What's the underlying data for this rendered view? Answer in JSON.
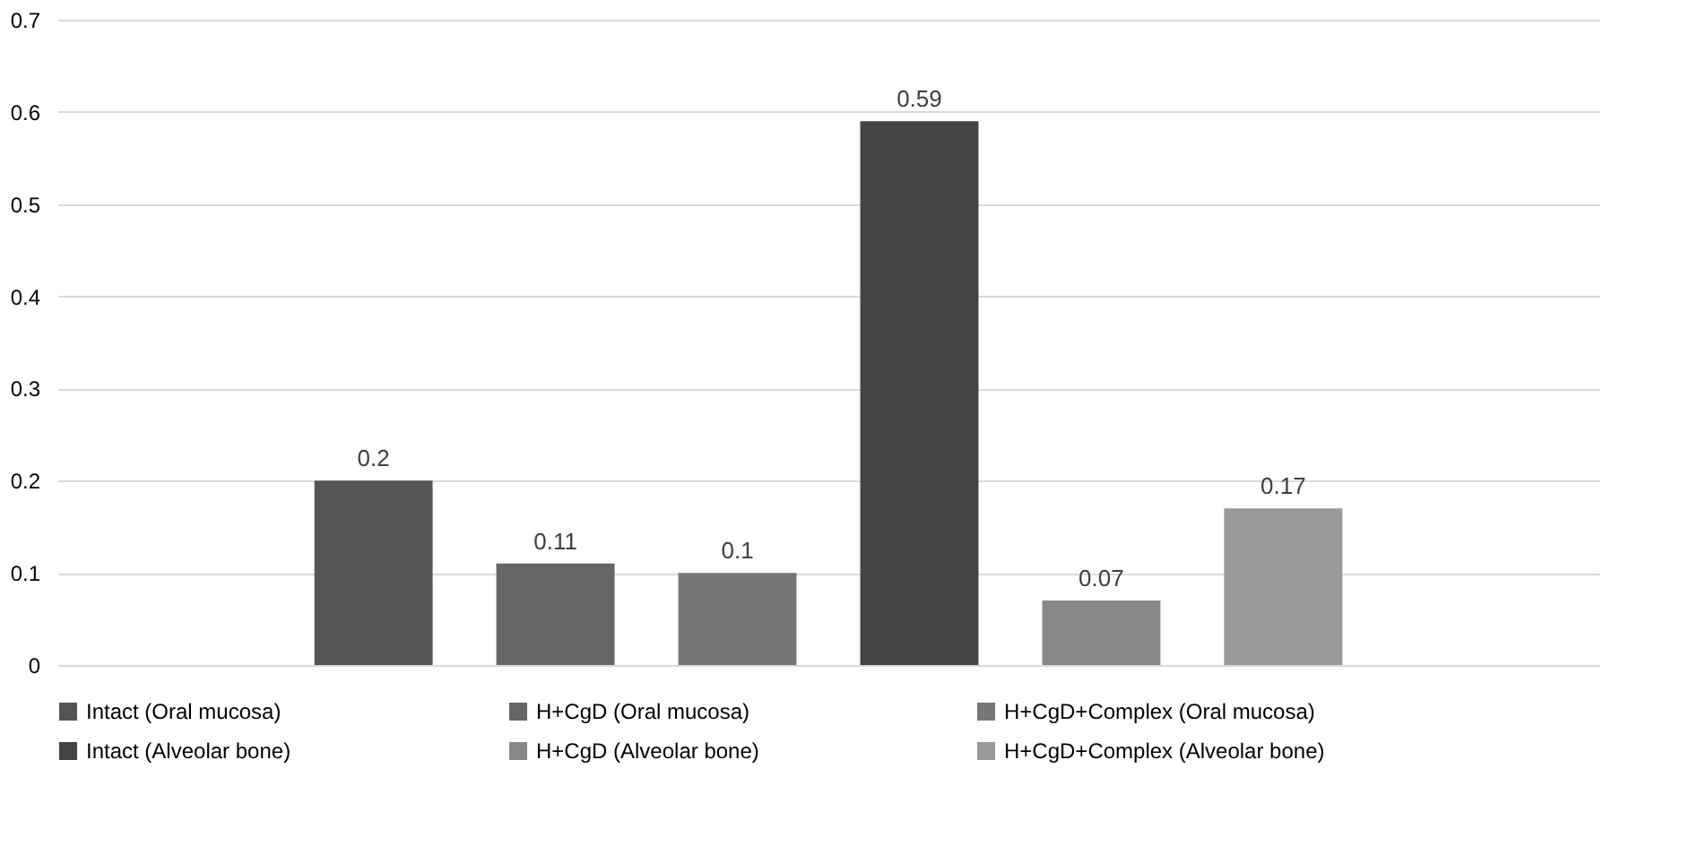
{
  "chart_data": {
    "type": "bar",
    "categories": [
      null
    ],
    "series": [
      {
        "name": "Intact (Oral mucosa)",
        "color": "#555555",
        "values": [
          0.2
        ]
      },
      {
        "name": "H+CgD (Oral mucosa)",
        "color": "#666666",
        "values": [
          0.11
        ]
      },
      {
        "name": "H+CgD+Complex  (Oral mucosa)",
        "color": "#777777",
        "values": [
          0.1
        ]
      },
      {
        "name": "Intact (Alveolar bone)",
        "color": "#444444",
        "values": [
          0.59
        ]
      },
      {
        "name": "H+CgD (Alveolar bone)",
        "color": "#888888",
        "values": [
          0.07
        ]
      },
      {
        "name": "H+CgD+Complex  (Alveolar bone)",
        "color": "#999999",
        "values": [
          0.17
        ]
      }
    ],
    "ylim": [
      0,
      0.7
    ],
    "yticks": [
      0,
      0.1,
      0.2,
      0.3,
      0.4,
      0.5,
      0.6,
      0.7
    ],
    "grid": "y",
    "legend": "bottom",
    "data_labels": true
  }
}
